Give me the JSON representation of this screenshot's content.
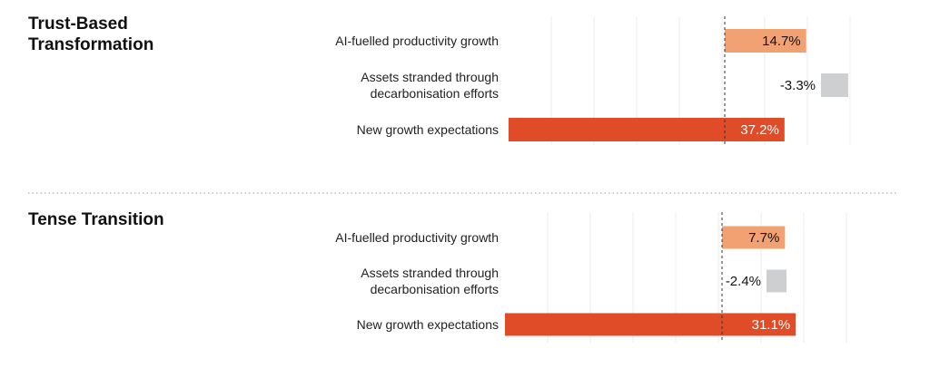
{
  "colors": {
    "ai": "#f2a272",
    "stranded": "#cdcfd0",
    "growth": "#e04b28",
    "grid": "#ececec",
    "zero_line": "#333333",
    "divider": "#9a9a9a"
  },
  "chart_data": [
    {
      "type": "bar",
      "orientation": "horizontal",
      "title": "Trust-Based Transformation",
      "categories": [
        "AI-fuelled productivity growth",
        "Assets stranded through decarbonisation efforts",
        "New growth expectations"
      ],
      "values": [
        14.7,
        -3.3,
        37.2
      ],
      "labels": [
        "14.7%",
        "-3.3%",
        "37.2%"
      ],
      "grid": true
    },
    {
      "type": "bar",
      "orientation": "horizontal",
      "title": "Tense Transition",
      "categories": [
        "AI-fuelled productivity growth",
        "Assets stranded through decarbonisation efforts",
        "New growth expectations"
      ],
      "values": [
        7.7,
        -2.4,
        31.1
      ],
      "labels": [
        "7.7%",
        "-2.4%",
        "31.1%"
      ],
      "grid": true
    }
  ]
}
